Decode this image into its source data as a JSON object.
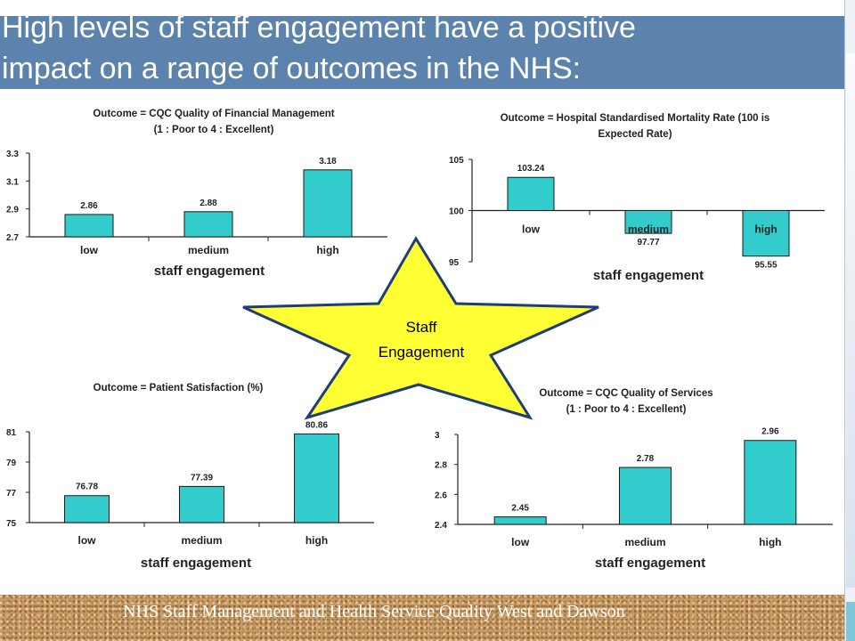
{
  "slide": {
    "title_line1": "High levels of staff engagement have a positive",
    "title_line2": "impact on a range of outcomes in the NHS:",
    "footer": "NHS Staff Management and Health Service Quality   West and Dawson"
  },
  "colors": {
    "bar": "#33cccc",
    "title_band": "#5b83ae",
    "star_fill": "#ffff33",
    "star_stroke": "#1f3d7a"
  },
  "star": {
    "line1": "Staff",
    "line2": "Engagement"
  },
  "chart_data": [
    {
      "type": "bar",
      "title": "Outcome = CQC Quality of Financial Management",
      "subtitle": "(1 : Poor to 4 : Excellent)",
      "xlabel": "staff engagement",
      "ylabel": "",
      "categories": [
        "low",
        "medium",
        "high"
      ],
      "values": [
        2.86,
        2.88,
        3.18
      ],
      "value_labels": [
        "2.86",
        "2.88",
        "3.18"
      ],
      "ylim": [
        2.7,
        3.3
      ],
      "yticks": [
        2.7,
        2.9,
        3.1,
        3.3
      ],
      "ytick_labels": [
        "2.7",
        "2.9",
        "3.1",
        "3.3"
      ],
      "baseline": 2.7,
      "category_labels_position": "below",
      "grid": false,
      "legend": "none"
    },
    {
      "type": "bar",
      "title": "Outcome = Hospital Standardised Mortality Rate (100 is",
      "subtitle": "Expected Rate)",
      "xlabel": "staff engagement",
      "ylabel": "",
      "categories": [
        "low",
        "medium",
        "high"
      ],
      "values": [
        103.24,
        97.77,
        95.55
      ],
      "value_labels": [
        "103.24",
        "97.77",
        "95.55"
      ],
      "ylim": [
        95,
        105
      ],
      "yticks": [
        95,
        100,
        105
      ],
      "ytick_labels": [
        "95",
        "100",
        "105"
      ],
      "baseline": 100,
      "category_labels_position": "at-baseline",
      "grid": false,
      "legend": "none"
    },
    {
      "type": "bar",
      "title": "Outcome = Patient Satisfaction (%)",
      "subtitle": "",
      "xlabel": "staff engagement",
      "ylabel": "",
      "categories": [
        "low",
        "medium",
        "high"
      ],
      "values": [
        76.78,
        77.39,
        80.86
      ],
      "value_labels": [
        "76.78",
        "77.39",
        "80.86"
      ],
      "ylim": [
        75,
        81
      ],
      "yticks": [
        75,
        77,
        79,
        81
      ],
      "ytick_labels": [
        "75",
        "77",
        "79",
        "81"
      ],
      "baseline": 75,
      "category_labels_position": "below",
      "grid": false,
      "legend": "none"
    },
    {
      "type": "bar",
      "title": "Outcome = CQC Quality of  Services",
      "subtitle": "(1 : Poor to 4 : Excellent)",
      "xlabel": "staff engagement",
      "ylabel": "",
      "categories": [
        "low",
        "medium",
        "high"
      ],
      "values": [
        2.45,
        2.78,
        2.96
      ],
      "value_labels": [
        "2.45",
        "2.78",
        "2.96"
      ],
      "ylim": [
        2.4,
        3
      ],
      "yticks": [
        2.4,
        2.6,
        2.8,
        3
      ],
      "ytick_labels": [
        "2.4",
        "2.6",
        "2.8",
        "3"
      ],
      "baseline": 2.4,
      "category_labels_position": "below",
      "grid": false,
      "legend": "none"
    }
  ]
}
